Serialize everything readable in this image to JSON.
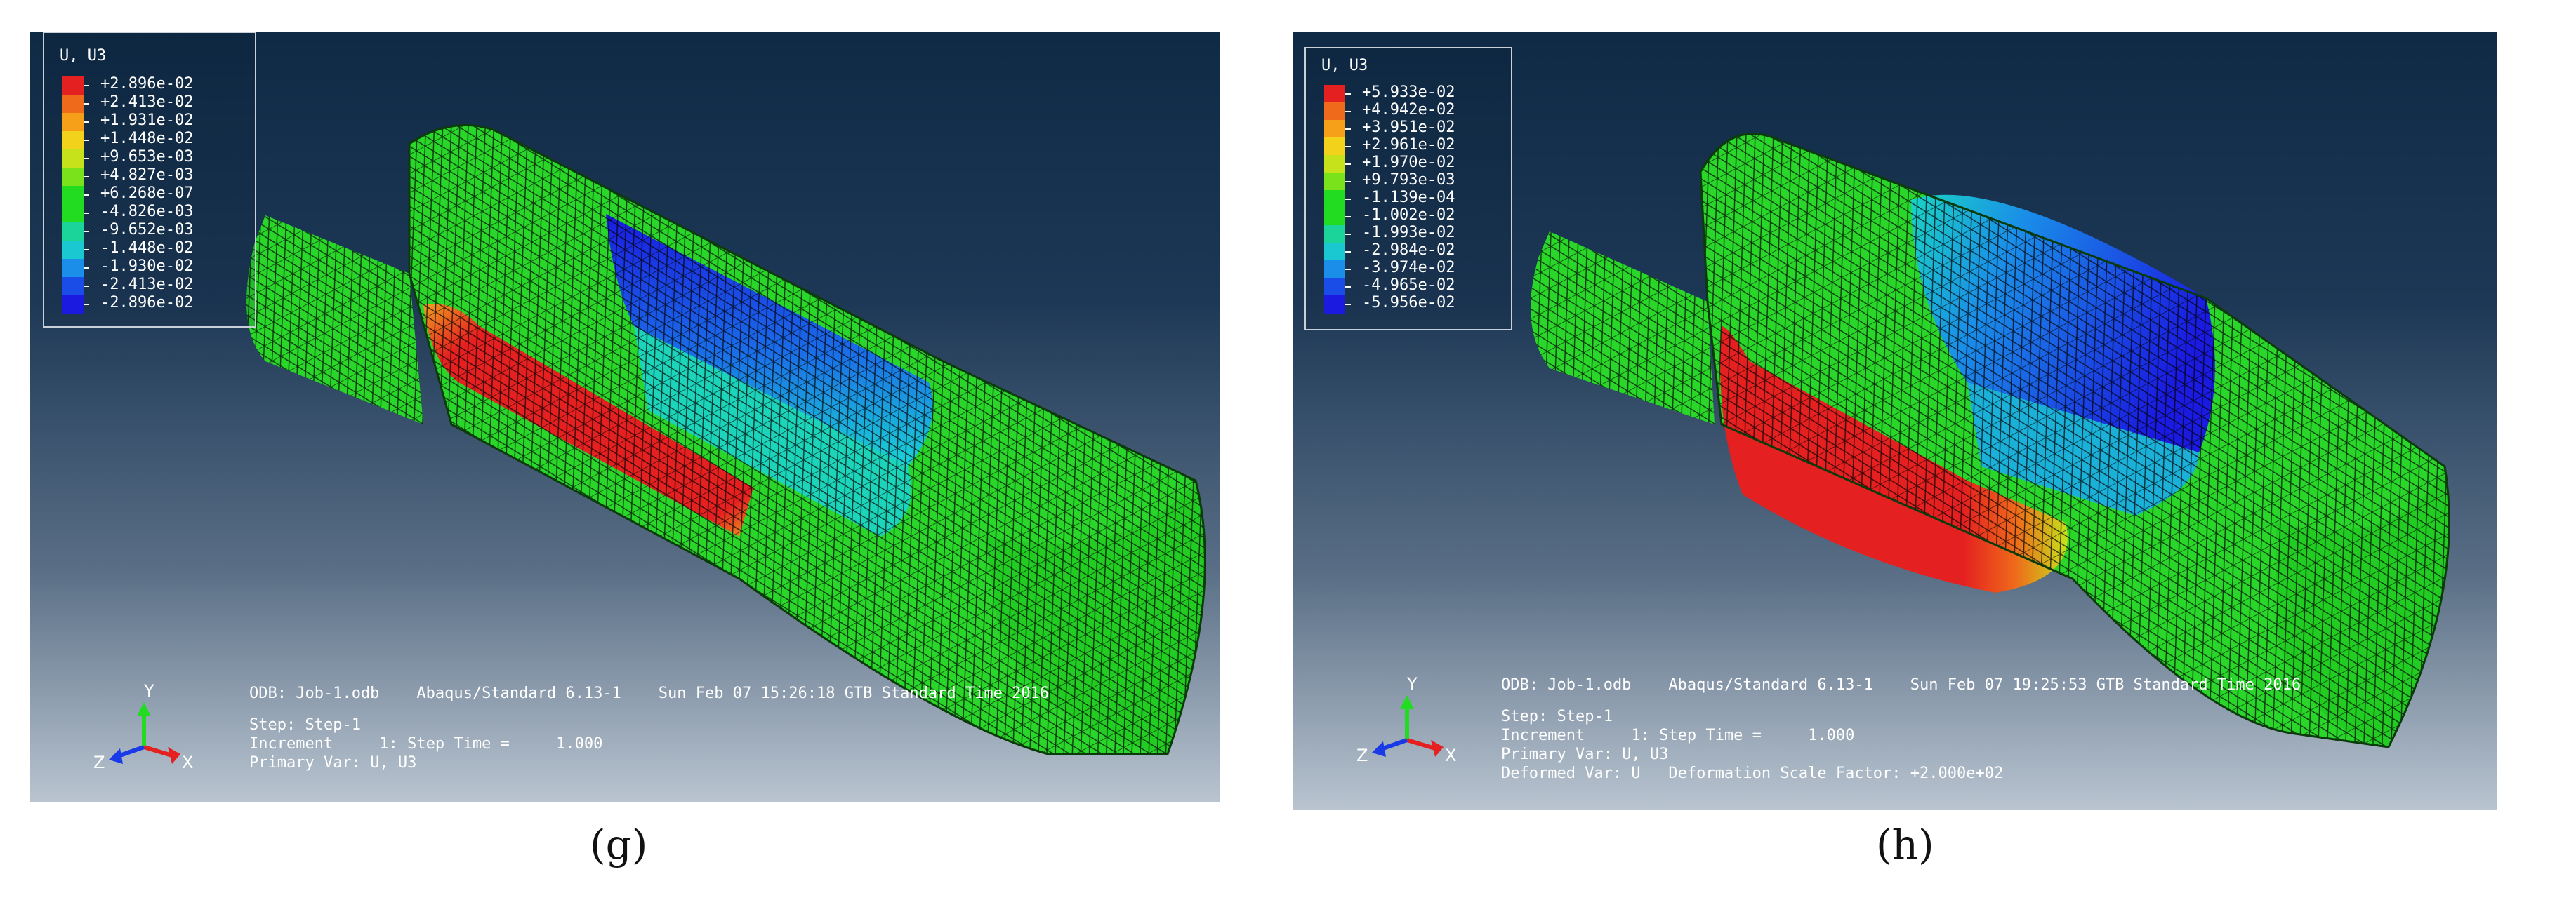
{
  "panels": [
    {
      "id": "g",
      "caption": "(g)",
      "legend": {
        "title": "U, U3",
        "values": [
          "+2.896e-02",
          "+2.413e-02",
          "+1.931e-02",
          "+1.448e-02",
          "+9.653e-03",
          "+4.827e-03",
          "+6.268e-07",
          "-4.826e-03",
          "-9.652e-03",
          "-1.448e-02",
          "-1.930e-02",
          "-2.413e-02",
          "-2.896e-02"
        ],
        "colors": [
          "#e52020",
          "#ef6a1a",
          "#f6a01a",
          "#f2d21a",
          "#c6e21a",
          "#7ae21a",
          "#22dc22",
          "#22dc22",
          "#1ad49a",
          "#1ac8d2",
          "#1a8ee8",
          "#1a4ce8",
          "#1a1ae0"
        ]
      },
      "info": {
        "odb_line": "ODB: Job-1.odb    Abaqus/Standard 6.13-1    Sun Feb 07 15:26:18 GTB Standard Time 2016",
        "step_line": "Step: Step-1",
        "increment_line": "Increment     1: Step Time =     1.000",
        "primary_var_line": "Primary Var: U, U3"
      },
      "triad": {
        "y": "Y",
        "z": "Z",
        "x": "X"
      }
    },
    {
      "id": "h",
      "caption": "(h)",
      "legend": {
        "title": "U, U3",
        "values": [
          "+5.933e-02",
          "+4.942e-02",
          "+3.951e-02",
          "+2.961e-02",
          "+1.970e-02",
          "+9.793e-03",
          "-1.139e-04",
          "-1.002e-02",
          "-1.993e-02",
          "-2.984e-02",
          "-3.974e-02",
          "-4.965e-02",
          "-5.956e-02"
        ],
        "colors": [
          "#e52020",
          "#ef6a1a",
          "#f6a01a",
          "#f2d21a",
          "#c6e21a",
          "#7ae21a",
          "#22dc22",
          "#22dc22",
          "#1ad49a",
          "#1ac8d2",
          "#1a8ee8",
          "#1a4ce8",
          "#1a1ae0"
        ]
      },
      "info": {
        "odb_line": "ODB: Job-1.odb    Abaqus/Standard 6.13-1    Sun Feb 07 19:25:53 GTB Standard Time 2016",
        "step_line": "Step: Step-1",
        "increment_line": "Increment     1: Step Time =     1.000",
        "primary_var_line": "Primary Var: U, U3",
        "deformed_var_line": "Deformed Var: U   Deformation Scale Factor: +2.000e+02"
      },
      "triad": {
        "y": "Y",
        "z": "Z",
        "x": "X"
      }
    }
  ]
}
